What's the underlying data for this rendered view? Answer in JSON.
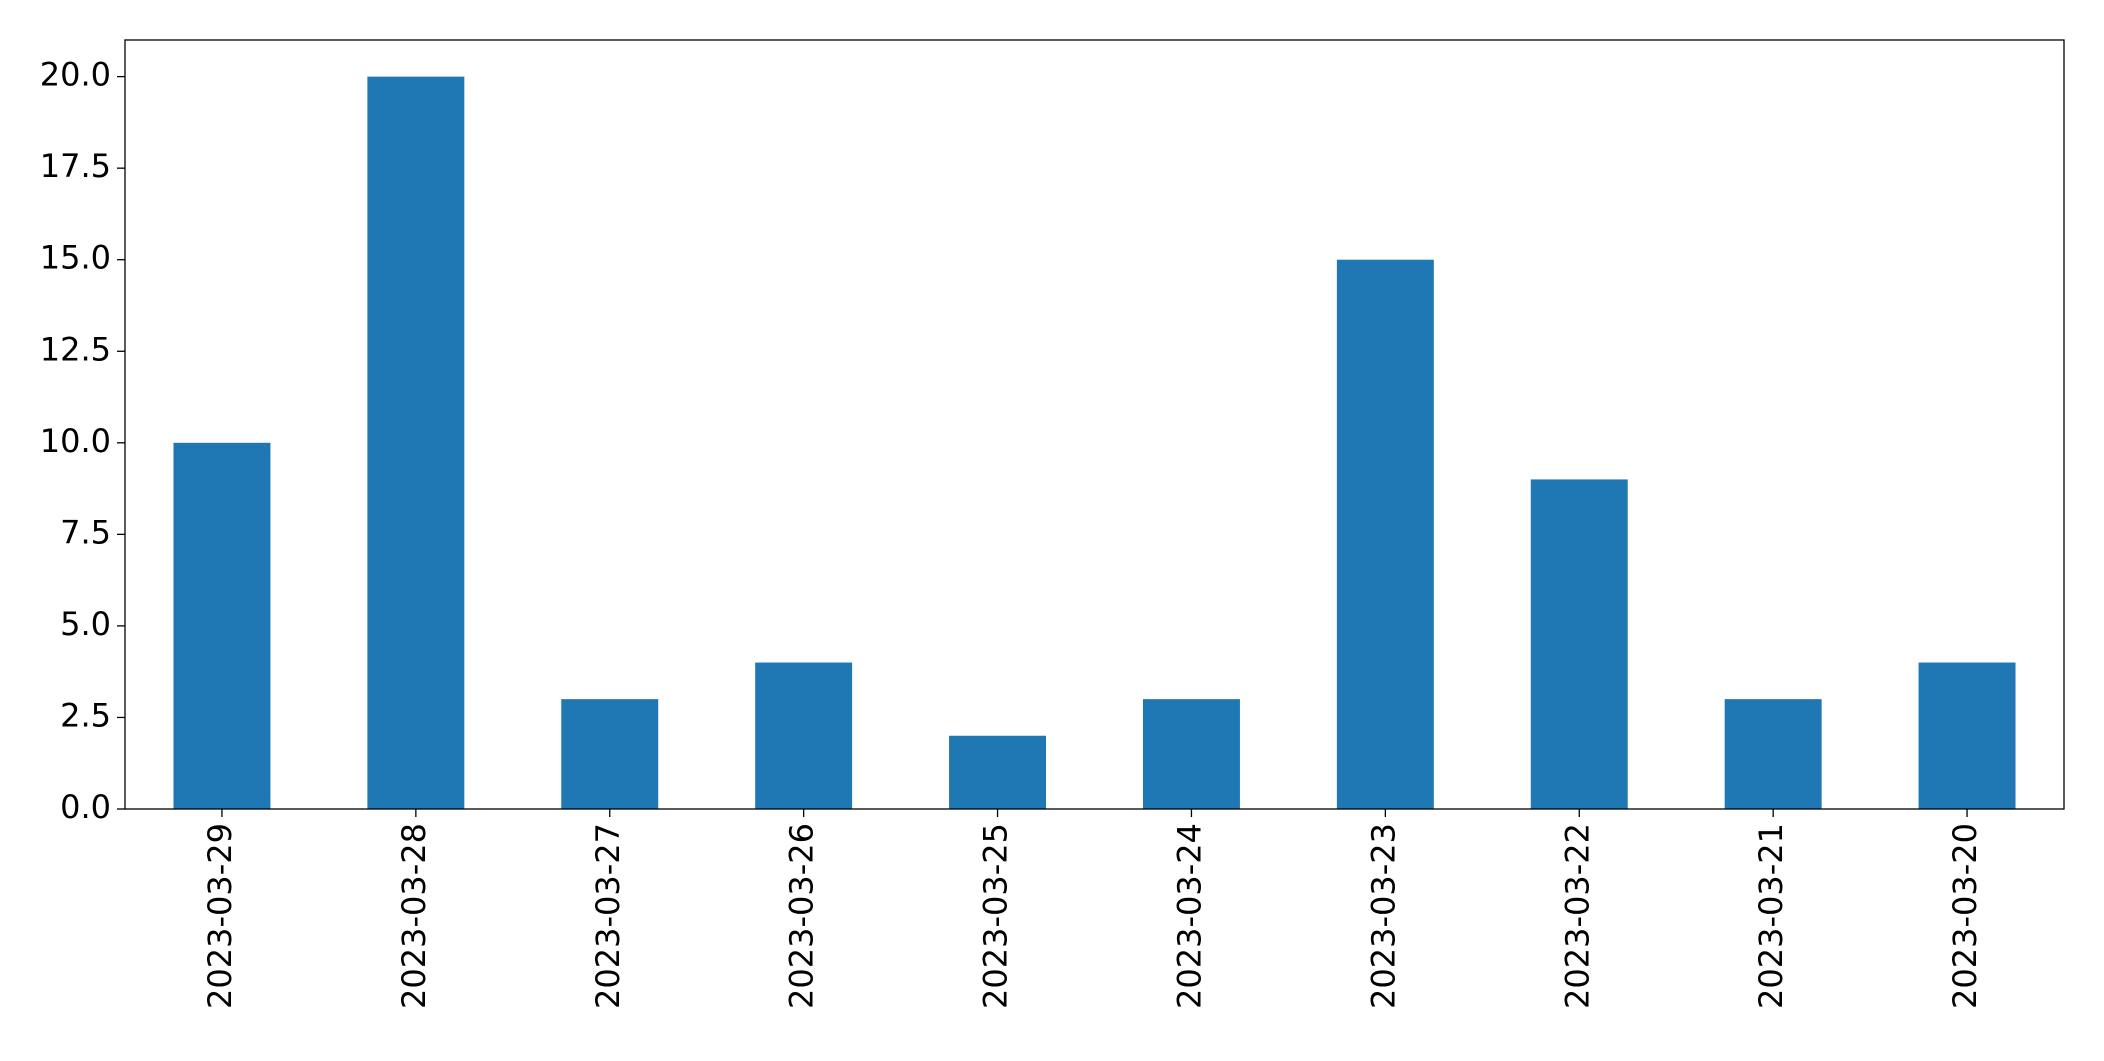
{
  "chart_data": {
    "type": "bar",
    "categories": [
      "2023-03-29",
      "2023-03-28",
      "2023-03-27",
      "2023-03-26",
      "2023-03-25",
      "2023-03-24",
      "2023-03-23",
      "2023-03-22",
      "2023-03-21",
      "2023-03-20"
    ],
    "values": [
      10,
      20,
      3,
      4,
      2,
      3,
      15,
      9,
      3,
      4
    ],
    "color": "#1f77b4",
    "ylim": [
      0,
      21
    ],
    "yticks": [
      {
        "value": 0,
        "label": "0.0"
      },
      {
        "value": 2.5,
        "label": "2.5"
      },
      {
        "value": 5,
        "label": "5.0"
      },
      {
        "value": 7.5,
        "label": "7.5"
      },
      {
        "value": 10,
        "label": "10.0"
      },
      {
        "value": 12.5,
        "label": "12.5"
      },
      {
        "value": 15,
        "label": "15.0"
      },
      {
        "value": 17.5,
        "label": "17.5"
      },
      {
        "value": 20,
        "label": "20.0"
      }
    ],
    "grid": false
  }
}
